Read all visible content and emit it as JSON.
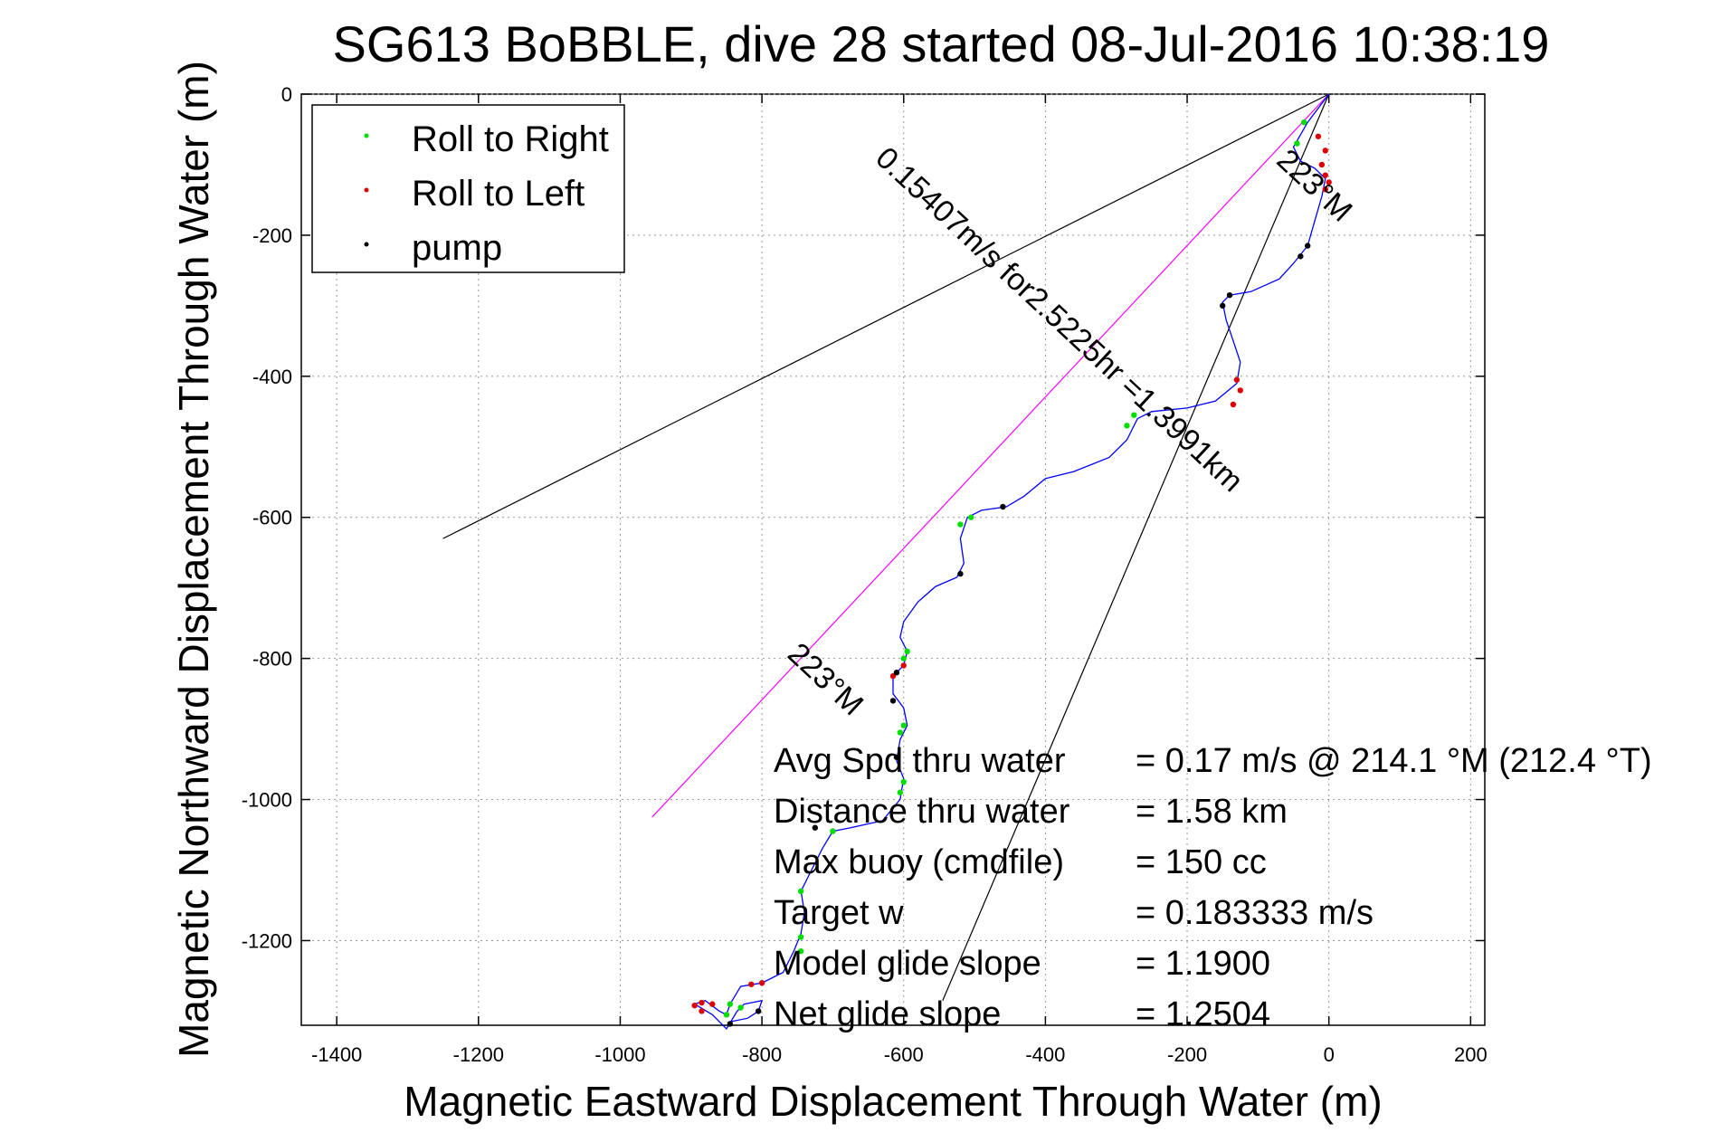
{
  "chart_data": {
    "type": "scatter",
    "title": "SG613 BoBBLE, dive 28 started 08-Jul-2016 10:38:19",
    "xlabel": "Magnetic Eastward Displacement Through Water (m)",
    "ylabel": "Magnetic Northward Displacement Through Water (m)",
    "xlim": [
      -1450,
      220
    ],
    "ylim": [
      -1320,
      0
    ],
    "xticks": [
      -1400,
      -1200,
      -1000,
      -800,
      -600,
      -400,
      -200,
      0,
      200
    ],
    "yticks": [
      0,
      -200,
      -400,
      -600,
      -800,
      -1000,
      -1200
    ],
    "xtick_labels": [
      "-1400",
      "-1200",
      "-1000",
      "-800",
      "-600",
      "-400",
      "-200",
      "0",
      "200"
    ],
    "ytick_labels": [
      "0",
      "-200",
      "-400",
      "-600",
      "-800",
      "-1000",
      "-1200"
    ],
    "grid": true,
    "legend_position": "top-left",
    "legend": [
      {
        "label": "Roll to Right",
        "color": "#00dd00"
      },
      {
        "label": "Roll to Left",
        "color": "#dd0000"
      },
      {
        "label": "pump",
        "color": "#000000"
      }
    ],
    "track_color": "#0000ff",
    "heading_line_color": "#ff00ff",
    "track": [
      [
        0,
        0
      ],
      [
        -30,
        -40
      ],
      [
        -50,
        -75
      ],
      [
        -40,
        -95
      ],
      [
        -20,
        -105
      ],
      [
        -5,
        -120
      ],
      [
        -10,
        -145
      ],
      [
        -20,
        -180
      ],
      [
        -30,
        -215
      ],
      [
        -50,
        -240
      ],
      [
        -70,
        -262
      ],
      [
        -110,
        -280
      ],
      [
        -140,
        -285
      ],
      [
        -150,
        -295
      ],
      [
        -145,
        -320
      ],
      [
        -135,
        -350
      ],
      [
        -125,
        -380
      ],
      [
        -130,
        -410
      ],
      [
        -160,
        -435
      ],
      [
        -200,
        -445
      ],
      [
        -250,
        -450
      ],
      [
        -270,
        -460
      ],
      [
        -285,
        -490
      ],
      [
        -310,
        -515
      ],
      [
        -360,
        -535
      ],
      [
        -400,
        -545
      ],
      [
        -430,
        -570
      ],
      [
        -455,
        -585
      ],
      [
        -490,
        -590
      ],
      [
        -510,
        -600
      ],
      [
        -520,
        -630
      ],
      [
        -515,
        -665
      ],
      [
        -525,
        -685
      ],
      [
        -555,
        -698
      ],
      [
        -580,
        -720
      ],
      [
        -600,
        -748
      ],
      [
        -605,
        -770
      ],
      [
        -595,
        -790
      ],
      [
        -600,
        -810
      ],
      [
        -615,
        -825
      ],
      [
        -615,
        -850
      ],
      [
        -600,
        -870
      ],
      [
        -595,
        -895
      ],
      [
        -605,
        -915
      ],
      [
        -610,
        -945
      ],
      [
        -600,
        -970
      ],
      [
        -605,
        -1000
      ],
      [
        -630,
        -1030
      ],
      [
        -675,
        -1040
      ],
      [
        -700,
        -1045
      ],
      [
        -715,
        -1070
      ],
      [
        -730,
        -1100
      ],
      [
        -745,
        -1130
      ],
      [
        -740,
        -1160
      ],
      [
        -745,
        -1190
      ],
      [
        -755,
        -1215
      ],
      [
        -770,
        -1245
      ],
      [
        -800,
        -1260
      ],
      [
        -830,
        -1265
      ],
      [
        -845,
        -1290
      ],
      [
        -850,
        -1305
      ],
      [
        -860,
        -1300
      ],
      [
        -880,
        -1285
      ],
      [
        -895,
        -1290
      ],
      [
        -870,
        -1305
      ],
      [
        -850,
        -1325
      ],
      [
        -835,
        -1300
      ],
      [
        -825,
        -1290
      ],
      [
        -800,
        -1285
      ],
      [
        -805,
        -1300
      ],
      [
        -820,
        -1310
      ],
      [
        -845,
        -1315
      ]
    ],
    "roll_right_points": [
      [
        -35,
        -40
      ],
      [
        -45,
        -70
      ],
      [
        -275,
        -455
      ],
      [
        -285,
        -470
      ],
      [
        -505,
        -600
      ],
      [
        -520,
        -610
      ],
      [
        -595,
        -790
      ],
      [
        -600,
        -800
      ],
      [
        -600,
        -895
      ],
      [
        -605,
        -905
      ],
      [
        -600,
        -975
      ],
      [
        -605,
        -990
      ],
      [
        -700,
        -1045
      ],
      [
        -745,
        -1130
      ],
      [
        -745,
        -1195
      ],
      [
        -745,
        -1215
      ],
      [
        -845,
        -1290
      ],
      [
        -850,
        -1305
      ],
      [
        -830,
        -1295
      ]
    ],
    "roll_left_points": [
      [
        -15,
        -60
      ],
      [
        -5,
        -80
      ],
      [
        -10,
        -100
      ],
      [
        -5,
        -115
      ],
      [
        0,
        -125
      ],
      [
        -5,
        -135
      ],
      [
        -130,
        -405
      ],
      [
        -125,
        -420
      ],
      [
        -135,
        -440
      ],
      [
        -600,
        -810
      ],
      [
        -615,
        -825
      ],
      [
        -800,
        -1260
      ],
      [
        -815,
        -1262
      ],
      [
        -870,
        -1290
      ],
      [
        -885,
        -1288
      ],
      [
        -895,
        -1292
      ],
      [
        -885,
        -1300
      ]
    ],
    "pump_points": [
      [
        -30,
        -215
      ],
      [
        -40,
        -230
      ],
      [
        -140,
        -285
      ],
      [
        -150,
        -300
      ],
      [
        -460,
        -585
      ],
      [
        -520,
        -680
      ],
      [
        -610,
        -820
      ],
      [
        -615,
        -860
      ],
      [
        -610,
        -940
      ],
      [
        -725,
        -1040
      ],
      [
        -805,
        -1300
      ],
      [
        -845,
        -1318
      ]
    ],
    "reference_lines": [
      {
        "from": [
          0,
          0
        ],
        "to": [
          -1250,
          -630
        ],
        "color": "#000000"
      },
      {
        "from": [
          0,
          0
        ],
        "to": [
          -545,
          -1285
        ],
        "color": "#000000"
      },
      {
        "from": [
          0,
          0
        ],
        "to": [
          -955,
          -1025
        ],
        "color": "#ff00ff"
      }
    ],
    "annotations": [
      {
        "text": "223°M",
        "angle": 43,
        "at": [
          -720,
          -840
        ]
      },
      {
        "text": "0.15407m/s for2.5225hr =1.3991km",
        "angle": 43,
        "at": [
          -390,
          -330
        ]
      },
      {
        "text": "223°M",
        "angle": 43,
        "at": [
          -30,
          -140
        ]
      }
    ],
    "stats": [
      {
        "label": "Avg Spd thru water",
        "value": "=  0.17 m/s @ 214.1 °M (212.4 °T)"
      },
      {
        "label": "Distance thru water",
        "value": "=  1.58 km"
      },
      {
        "label": "Max buoy (cmdfile)",
        "value": "= 150 cc"
      },
      {
        "label": "Target w",
        "value": "= 0.183333 m/s"
      },
      {
        "label": "Model glide slope",
        "value": "= 1.1900"
      },
      {
        "label": "Net glide slope",
        "value": "= 1.2504"
      }
    ]
  }
}
